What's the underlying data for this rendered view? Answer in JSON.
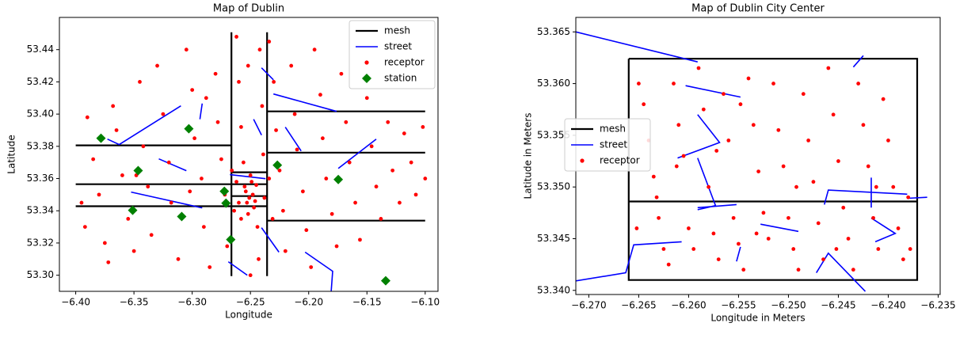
{
  "chart_data": [
    {
      "type": "scatter",
      "title": "Map of Dublin",
      "xlabel": "Longitude",
      "ylabel": "Latitude",
      "xlim": [
        -6.414,
        -6.089
      ],
      "ylim": [
        53.29,
        53.46
      ],
      "legend": "upper right",
      "xticks": [
        {
          "value": -6.4,
          "label": "−6.40"
        },
        {
          "value": -6.35,
          "label": "−6.35"
        },
        {
          "value": -6.3,
          "label": "−6.30"
        },
        {
          "value": -6.25,
          "label": "−6.25"
        },
        {
          "value": -6.2,
          "label": "−6.20"
        },
        {
          "value": -6.15,
          "label": "−6.15"
        },
        {
          "value": -6.1,
          "label": "−6.10"
        }
      ],
      "yticks": [
        {
          "value": 53.3,
          "label": "53.30"
        },
        {
          "value": 53.32,
          "label": "53.32"
        },
        {
          "value": 53.34,
          "label": "53.34"
        },
        {
          "value": 53.36,
          "label": "53.36"
        },
        {
          "value": 53.38,
          "label": "53.38"
        },
        {
          "value": 53.4,
          "label": "53.40"
        },
        {
          "value": 53.42,
          "label": "53.42"
        },
        {
          "value": 53.44,
          "label": "53.44"
        }
      ],
      "series": [
        {
          "name": "mesh",
          "color": "#000000",
          "marker": "line",
          "width": 2.2,
          "x": [
            -6.2663,
            -6.2663,
            null,
            -6.2357,
            -6.2357,
            null,
            -6.4,
            -6.2663,
            null,
            -6.4,
            -6.2357,
            null,
            -6.4,
            -6.2357,
            null,
            -6.2357,
            -6.1,
            null,
            -6.2357,
            -6.1,
            null,
            -6.2357,
            -6.1,
            null,
            -6.2663,
            -6.2357,
            null,
            -6.2663,
            -6.2357
          ],
          "y": [
            53.4508,
            53.2995,
            null,
            53.4508,
            53.2995,
            null,
            53.3806,
            53.3806,
            null,
            53.3565,
            53.3565,
            null,
            53.3428,
            53.3428,
            null,
            53.4017,
            53.4017,
            null,
            53.3761,
            53.3761,
            null,
            53.3339,
            53.3339,
            null,
            53.3639,
            53.3639,
            null,
            53.3491,
            53.3491
          ]
        },
        {
          "name": "street",
          "color": "#0000ff",
          "marker": "line",
          "width": 1.6,
          "x": [
            -6.3728,
            -6.3627,
            -6.3097,
            null,
            -6.2303,
            -6.176,
            null,
            -6.2405,
            -6.2303,
            null,
            -6.1746,
            -6.142,
            null,
            -6.2031,
            -6.1794,
            -6.1807,
            null,
            -6.3525,
            -6.2914,
            null,
            -6.2405,
            -6.2255,
            null,
            -6.269,
            -6.2527,
            null,
            -6.2914,
            -6.2934,
            null,
            -6.2201,
            -6.2065,
            null,
            -6.3287,
            -6.305,
            null,
            -6.2676,
            -6.2371,
            null,
            -6.2473,
            -6.2405
          ],
          "y": [
            53.3845,
            53.3811,
            53.4051,
            null,
            53.4125,
            53.4017,
            null,
            53.4287,
            53.4213,
            null,
            53.3663,
            53.3845,
            null,
            53.3143,
            53.3025,
            53.2897,
            null,
            53.3516,
            53.3418,
            null,
            53.3295,
            53.3143,
            null,
            53.3084,
            53.3,
            null,
            53.4066,
            53.3968,
            null,
            53.3919,
            53.3771,
            null,
            53.3722,
            53.3649,
            null,
            53.3624,
            53.3599,
            null,
            53.3968,
            53.387
          ]
        },
        {
          "name": "receptor",
          "color": "#ff0000",
          "marker": "dot",
          "x": [
            -6.39,
            -6.385,
            -6.38,
            -6.375,
            -6.372,
            -6.365,
            -6.36,
            -6.355,
            -6.35,
            -6.345,
            -6.342,
            -6.338,
            -6.335,
            -6.33,
            -6.325,
            -6.32,
            -6.318,
            -6.312,
            -6.305,
            -6.3,
            -6.298,
            -6.292,
            -6.29,
            -6.285,
            -6.28,
            -6.278,
            -6.275,
            -6.272,
            -6.27,
            -6.262,
            -6.26,
            -6.258,
            -6.256,
            -6.255,
            -6.253,
            -6.252,
            -6.25,
            -6.248,
            -6.247,
            -6.245,
            -6.244,
            -6.243,
            -6.242,
            -6.24,
            -6.239,
            -6.238,
            -6.26,
            -6.262,
            -6.258,
            -6.254,
            -6.251,
            -6.249,
            -6.246,
            -6.264,
            -6.266,
            -6.252,
            -6.25,
            -6.234,
            -6.23,
            -6.228,
            -6.225,
            -6.222,
            -6.22,
            -6.215,
            -6.212,
            -6.21,
            -6.205,
            -6.202,
            -6.198,
            -6.195,
            -6.19,
            -6.188,
            -6.185,
            -6.18,
            -6.176,
            -6.172,
            -6.168,
            -6.165,
            -6.16,
            -6.156,
            -6.15,
            -6.146,
            -6.142,
            -6.138,
            -6.132,
            -6.128,
            -6.122,
            -6.118,
            -6.112,
            -6.108,
            -6.102,
            -6.1,
            -6.395,
            -6.392,
            -6.368,
            -6.348,
            -6.302,
            -6.288,
            -6.234,
            -6.231
          ],
          "y": [
            53.398,
            53.372,
            53.35,
            53.32,
            53.308,
            53.39,
            53.362,
            53.335,
            53.315,
            53.42,
            53.38,
            53.355,
            53.325,
            53.43,
            53.4,
            53.37,
            53.345,
            53.31,
            53.44,
            53.415,
            53.385,
            53.36,
            53.33,
            53.305,
            53.425,
            53.395,
            53.372,
            53.35,
            53.318,
            53.448,
            53.42,
            53.392,
            53.37,
            53.355,
            53.345,
            53.338,
            53.362,
            53.35,
            53.342,
            53.356,
            53.33,
            53.31,
            53.44,
            53.405,
            53.375,
            53.348,
            53.345,
            53.358,
            53.335,
            53.352,
            53.348,
            53.358,
            53.346,
            53.34,
            53.365,
            53.43,
            53.3,
            53.445,
            53.42,
            53.39,
            53.365,
            53.34,
            53.315,
            53.43,
            53.4,
            53.378,
            53.352,
            53.328,
            53.305,
            53.44,
            53.412,
            53.385,
            53.36,
            53.338,
            53.318,
            53.425,
            53.395,
            53.37,
            53.345,
            53.322,
            53.41,
            53.38,
            53.355,
            53.335,
            53.395,
            53.365,
            53.345,
            53.388,
            53.37,
            53.35,
            53.392,
            53.36,
            53.345,
            53.33,
            53.405,
            53.362,
            53.352,
            53.41,
            53.36,
            53.335
          ]
        },
        {
          "name": "station",
          "color": "#008000",
          "marker": "diamond",
          "x": [
            -6.3783,
            -6.3029,
            -6.3464,
            -6.3511,
            -6.309,
            -6.2724,
            -6.271,
            -6.2669,
            -6.2269,
            -6.1746,
            -6.1339
          ],
          "y": [
            53.385,
            53.3909,
            53.3649,
            53.3403,
            53.3364,
            53.3521,
            53.3447,
            53.3221,
            53.3683,
            53.3594,
            53.2966
          ]
        }
      ]
    },
    {
      "type": "scatter",
      "title": "Map of Dublin City Center",
      "xlabel": "Longitude in Meters",
      "ylabel": "Latitude in Meters",
      "xlim": [
        -6.2713,
        -6.2348
      ],
      "ylim": [
        53.3396,
        53.3664
      ],
      "legend": "center left",
      "xticks": [
        {
          "value": -6.27,
          "label": "−6.270"
        },
        {
          "value": -6.265,
          "label": "−6.265"
        },
        {
          "value": -6.26,
          "label": "−6.260"
        },
        {
          "value": -6.255,
          "label": "−6.255"
        },
        {
          "value": -6.25,
          "label": "−6.250"
        },
        {
          "value": -6.245,
          "label": "−6.245"
        },
        {
          "value": -6.24,
          "label": "−6.240"
        },
        {
          "value": -6.235,
          "label": "−6.235"
        }
      ],
      "yticks": [
        {
          "value": 53.34,
          "label": "53.340"
        },
        {
          "value": 53.345,
          "label": "53.345"
        },
        {
          "value": 53.35,
          "label": "53.350"
        },
        {
          "value": 53.355,
          "label": "53.355"
        },
        {
          "value": 53.36,
          "label": "53.360"
        },
        {
          "value": 53.365,
          "label": "53.365"
        }
      ],
      "series": [
        {
          "name": "mesh",
          "color": "#000000",
          "marker": "line",
          "width": 2.2,
          "x": [
            -6.266,
            -6.2371,
            -6.2371,
            -6.266,
            -6.266,
            null,
            -6.266,
            -6.2371
          ],
          "y": [
            53.3624,
            53.3624,
            53.341,
            53.341,
            53.3624,
            null,
            53.3486,
            53.3486
          ]
        },
        {
          "name": "street",
          "color": "#0000ff",
          "marker": "line",
          "width": 1.6,
          "x": [
            -6.2713,
            -6.2591,
            null,
            -6.2603,
            -6.2548,
            null,
            -6.2591,
            -6.2569,
            -6.2611,
            null,
            -6.2591,
            -6.2573,
            -6.2591,
            null,
            -6.2591,
            -6.2552,
            null,
            -6.2435,
            -6.2425,
            null,
            -6.2464,
            -6.246,
            -6.2381,
            null,
            -6.2381,
            -6.2361,
            null,
            -6.2417,
            -6.2417,
            null,
            -6.2528,
            -6.249,
            null,
            -6.2472,
            -6.246,
            -6.2423,
            null,
            -6.2714,
            -6.2663,
            -6.2655,
            -6.2607,
            null,
            -6.2417,
            -6.2393,
            -6.2413,
            null,
            -6.2552,
            -6.2548
          ],
          "y": [
            53.365,
            53.3621,
            null,
            53.3598,
            53.3587,
            null,
            53.357,
            53.3543,
            53.3528,
            null,
            53.3528,
            53.3482,
            53.3478,
            null,
            53.348,
            53.3483,
            null,
            53.3616,
            53.3627,
            null,
            53.3483,
            53.3497,
            53.3493,
            null,
            53.3489,
            53.349,
            null,
            53.3509,
            53.348,
            null,
            53.3464,
            53.3457,
            null,
            53.3417,
            53.3436,
            53.3399,
            null,
            53.3409,
            53.3417,
            53.3444,
            53.3447,
            null,
            53.347,
            53.3455,
            53.3447,
            null,
            53.3428,
            53.3442
          ]
        },
        {
          "name": "receptor",
          "color": "#ff0000",
          "marker": "dot",
          "x": [
            -6.265,
            -6.2645,
            -6.264,
            -6.2635,
            -6.263,
            -6.2625,
            -6.262,
            -6.2615,
            -6.261,
            -6.2605,
            -6.26,
            -6.2595,
            -6.259,
            -6.2585,
            -6.258,
            -6.2575,
            -6.257,
            -6.2565,
            -6.256,
            -6.2555,
            -6.255,
            -6.2545,
            -6.254,
            -6.2535,
            -6.253,
            -6.2525,
            -6.252,
            -6.2515,
            -6.251,
            -6.2505,
            -6.25,
            -6.2495,
            -6.249,
            -6.2485,
            -6.248,
            -6.2475,
            -6.247,
            -6.2465,
            -6.246,
            -6.2455,
            -6.245,
            -6.2445,
            -6.244,
            -6.2435,
            -6.243,
            -6.2425,
            -6.242,
            -6.2415,
            -6.241,
            -6.2405,
            -6.24,
            -6.2395,
            -6.239,
            -6.2385,
            -6.238,
            -6.2652,
            -6.2632,
            -6.2612,
            -6.2572,
            -6.2532,
            -6.2492,
            -6.2452,
            -6.2412,
            -6.2378,
            -6.2548
          ],
          "y": [
            53.36,
            53.358,
            53.3545,
            53.351,
            53.347,
            53.344,
            53.3425,
            53.36,
            53.356,
            53.353,
            53.346,
            53.344,
            53.3615,
            53.3575,
            53.35,
            53.3455,
            53.343,
            53.359,
            53.3545,
            53.347,
            53.3445,
            53.342,
            53.3605,
            53.356,
            53.3515,
            53.3475,
            53.345,
            53.36,
            53.3555,
            53.352,
            53.347,
            53.344,
            53.342,
            53.359,
            53.3545,
            53.3505,
            53.3465,
            53.343,
            53.3615,
            53.357,
            53.3525,
            53.348,
            53.345,
            53.342,
            53.36,
            53.356,
            53.352,
            53.347,
            53.344,
            53.3585,
            53.3545,
            53.35,
            53.346,
            53.343,
            53.349,
            53.346,
            53.349,
            53.352,
            53.3535,
            53.3455,
            53.35,
            53.344,
            53.35,
            53.344,
            53.358
          ]
        }
      ]
    }
  ]
}
